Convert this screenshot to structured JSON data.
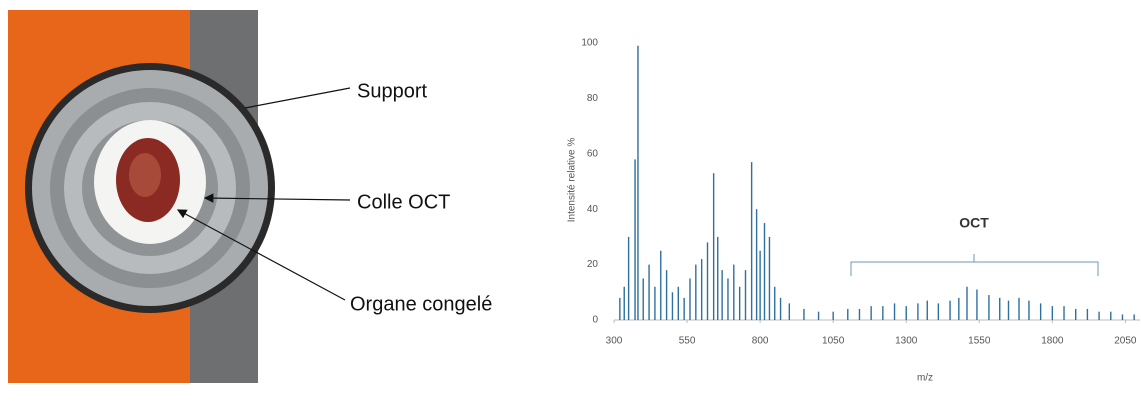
{
  "photo": {
    "labels": [
      "Support",
      "Colle OCT",
      "Organe congelé"
    ]
  },
  "chart_data": {
    "type": "stem",
    "ylabel": "Intensité relative %",
    "xlabel": "m/z",
    "annotation": "OCT",
    "color": "#2e6f9e",
    "grid": false,
    "xlim": [
      300,
      2100
    ],
    "xticks": [
      300,
      550,
      800,
      1050,
      1300,
      1550,
      1800,
      2050
    ],
    "ylim": [
      0,
      100
    ],
    "yticks": [
      0,
      20,
      40,
      60,
      80,
      100
    ],
    "x": [
      320,
      335,
      350,
      372,
      382,
      400,
      420,
      440,
      460,
      480,
      500,
      520,
      540,
      560,
      580,
      600,
      620,
      641,
      655,
      670,
      690,
      710,
      730,
      750,
      771,
      788,
      800,
      815,
      832,
      850,
      870,
      900,
      950,
      1000,
      1050,
      1100,
      1140,
      1180,
      1220,
      1260,
      1300,
      1340,
      1372,
      1410,
      1450,
      1480,
      1508,
      1542,
      1583,
      1620,
      1650,
      1686,
      1720,
      1760,
      1800,
      1840,
      1880,
      1920,
      1960,
      2000,
      2040,
      2080
    ],
    "values": [
      8,
      12,
      30,
      58,
      99,
      15,
      20,
      12,
      25,
      18,
      10,
      12,
      8,
      15,
      20,
      22,
      28,
      53,
      30,
      18,
      15,
      20,
      12,
      18,
      57,
      40,
      25,
      35,
      30,
      12,
      8,
      6,
      4,
      3,
      3,
      4,
      4,
      5,
      5,
      6,
      5,
      6,
      7,
      6,
      7,
      8,
      12,
      11,
      9,
      8,
      7,
      8,
      7,
      6,
      5,
      5,
      4,
      4,
      3,
      3,
      2,
      2
    ]
  }
}
